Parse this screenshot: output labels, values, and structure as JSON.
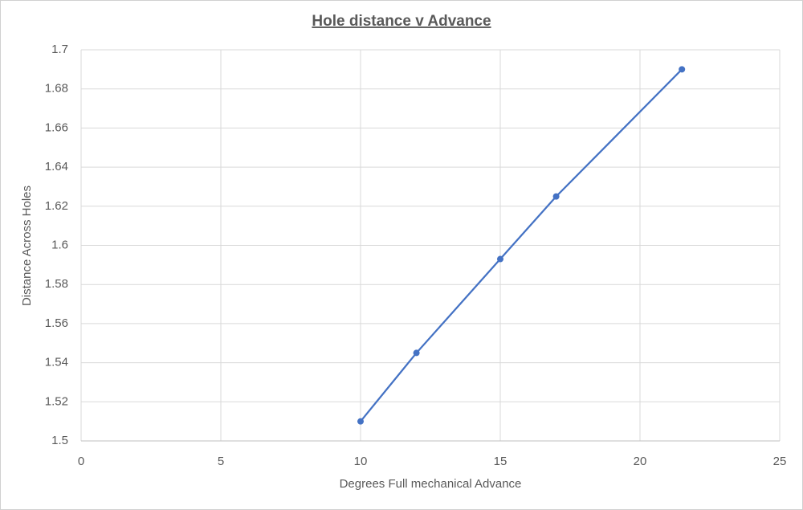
{
  "chart_data": {
    "type": "line",
    "title": "Hole distance v Advance",
    "x_label": "Degrees Full mechanical Advance",
    "y_label": "Distance Across Holes",
    "x": [
      10,
      12,
      15,
      17,
      21.5
    ],
    "series": [
      {
        "name": "Distance Across Holes",
        "color": "#4472c4",
        "values": [
          1.51,
          1.545,
          1.593,
          1.625,
          1.69
        ]
      }
    ],
    "xlim": [
      0,
      25
    ],
    "xticks": [
      0,
      5,
      10,
      15,
      20,
      25
    ],
    "ylim": [
      1.5,
      1.7
    ],
    "yticks": [
      1.5,
      1.52,
      1.54,
      1.56,
      1.58,
      1.6,
      1.62,
      1.64,
      1.66,
      1.68,
      1.7
    ],
    "grid": true,
    "markers": true
  }
}
